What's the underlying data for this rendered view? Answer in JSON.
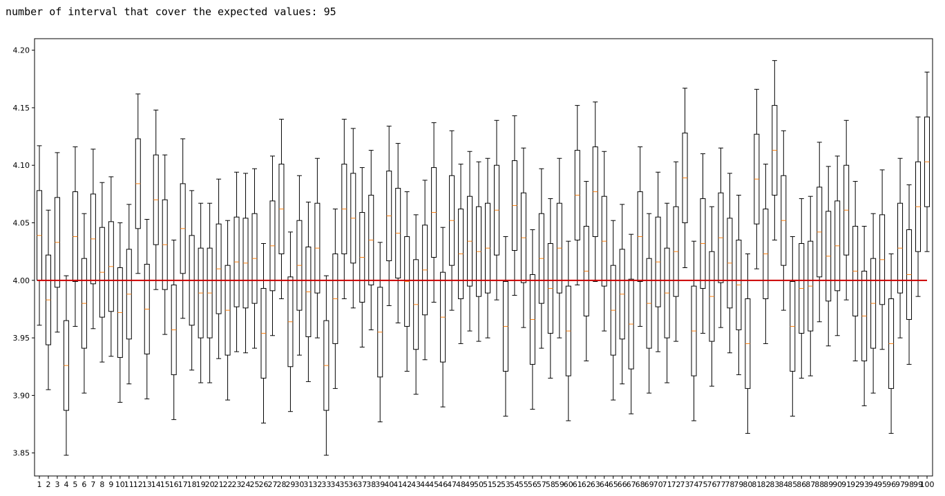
{
  "header": {
    "text": "number of interval that cover the expected values: 95"
  },
  "colors": {
    "box": "#000000",
    "median": "#ff7f0e",
    "reference_line": "#cc0000",
    "axes": "#000000"
  },
  "chart_data": {
    "type": "boxplot",
    "title": "",
    "xlabel": "",
    "ylabel": "",
    "ylim": [
      3.83,
      4.21
    ],
    "yticks": [
      3.85,
      3.9,
      3.95,
      4.0,
      4.05,
      4.1,
      4.15,
      4.2
    ],
    "ytick_labels": [
      "3.85",
      "3.90",
      "3.95",
      "4.00",
      "4.05",
      "4.10",
      "4.15",
      "4.20"
    ],
    "grid": false,
    "reference_line": {
      "y": 4.0
    },
    "categories": [
      "1",
      "2",
      "3",
      "4",
      "5",
      "6",
      "7",
      "8",
      "9",
      "10",
      "11",
      "12",
      "13",
      "14",
      "15",
      "16",
      "17",
      "18",
      "19",
      "20",
      "21",
      "22",
      "23",
      "24",
      "25",
      "26",
      "27",
      "28",
      "29",
      "30",
      "31",
      "32",
      "33",
      "34",
      "35",
      "36",
      "37",
      "38",
      "39",
      "40",
      "41",
      "42",
      "43",
      "44",
      "45",
      "46",
      "47",
      "48",
      "49",
      "50",
      "51",
      "52",
      "53",
      "54",
      "55",
      "56",
      "57",
      "58",
      "59",
      "60",
      "61",
      "62",
      "63",
      "64",
      "65",
      "66",
      "67",
      "68",
      "69",
      "70",
      "71",
      "72",
      "73",
      "74",
      "75",
      "76",
      "77",
      "78",
      "79",
      "80",
      "81",
      "82",
      "83",
      "84",
      "85",
      "86",
      "87",
      "88",
      "89",
      "90",
      "91",
      "92",
      "93",
      "94",
      "95",
      "96",
      "97",
      "98",
      "99",
      "100"
    ],
    "boxes": [
      {
        "wl": 3.961,
        "q1": 4.0,
        "med": 4.039,
        "q3": 4.078,
        "wh": 4.117
      },
      {
        "wl": 3.905,
        "q1": 3.944,
        "med": 3.983,
        "q3": 4.022,
        "wh": 4.061
      },
      {
        "wl": 3.955,
        "q1": 3.994,
        "med": 4.033,
        "q3": 4.072,
        "wh": 4.111
      },
      {
        "wl": 3.848,
        "q1": 3.887,
        "med": 3.926,
        "q3": 3.965,
        "wh": 4.004
      },
      {
        "wl": 3.96,
        "q1": 3.999,
        "med": 4.038,
        "q3": 4.077,
        "wh": 4.116
      },
      {
        "wl": 3.902,
        "q1": 3.941,
        "med": 3.98,
        "q3": 4.019,
        "wh": 4.058
      },
      {
        "wl": 3.958,
        "q1": 3.997,
        "med": 4.036,
        "q3": 4.075,
        "wh": 4.114
      },
      {
        "wl": 3.929,
        "q1": 3.968,
        "med": 4.007,
        "q3": 4.046,
        "wh": 4.085
      },
      {
        "wl": 3.934,
        "q1": 3.973,
        "med": 4.012,
        "q3": 4.051,
        "wh": 4.09
      },
      {
        "wl": 3.894,
        "q1": 3.933,
        "med": 3.972,
        "q3": 4.011,
        "wh": 4.05
      },
      {
        "wl": 3.91,
        "q1": 3.949,
        "med": 3.988,
        "q3": 4.027,
        "wh": 4.066
      },
      {
        "wl": 4.006,
        "q1": 4.045,
        "med": 4.084,
        "q3": 4.123,
        "wh": 4.162
      },
      {
        "wl": 3.897,
        "q1": 3.936,
        "med": 3.975,
        "q3": 4.014,
        "wh": 4.053
      },
      {
        "wl": 3.992,
        "q1": 4.031,
        "med": 4.07,
        "q3": 4.109,
        "wh": 4.148
      },
      {
        "wl": 3.953,
        "q1": 3.992,
        "med": 4.031,
        "q3": 4.07,
        "wh": 4.109
      },
      {
        "wl": 3.879,
        "q1": 3.918,
        "med": 3.957,
        "q3": 3.996,
        "wh": 4.035
      },
      {
        "wl": 3.967,
        "q1": 4.006,
        "med": 4.045,
        "q3": 4.084,
        "wh": 4.123
      },
      {
        "wl": 3.922,
        "q1": 3.961,
        "med": 4.0,
        "q3": 4.039,
        "wh": 4.078
      },
      {
        "wl": 3.911,
        "q1": 3.95,
        "med": 3.989,
        "q3": 4.028,
        "wh": 4.067
      },
      {
        "wl": 3.911,
        "q1": 3.95,
        "med": 3.989,
        "q3": 4.028,
        "wh": 4.067
      },
      {
        "wl": 3.932,
        "q1": 3.971,
        "med": 4.01,
        "q3": 4.049,
        "wh": 4.088
      },
      {
        "wl": 3.896,
        "q1": 3.935,
        "med": 3.974,
        "q3": 4.013,
        "wh": 4.052
      },
      {
        "wl": 3.938,
        "q1": 3.977,
        "med": 4.016,
        "q3": 4.055,
        "wh": 4.094
      },
      {
        "wl": 3.937,
        "q1": 3.976,
        "med": 4.015,
        "q3": 4.054,
        "wh": 4.093
      },
      {
        "wl": 3.941,
        "q1": 3.98,
        "med": 4.019,
        "q3": 4.058,
        "wh": 4.097
      },
      {
        "wl": 3.876,
        "q1": 3.915,
        "med": 3.954,
        "q3": 3.993,
        "wh": 4.032
      },
      {
        "wl": 3.952,
        "q1": 3.991,
        "med": 4.03,
        "q3": 4.069,
        "wh": 4.108
      },
      {
        "wl": 3.984,
        "q1": 4.023,
        "med": 4.062,
        "q3": 4.101,
        "wh": 4.14
      },
      {
        "wl": 3.886,
        "q1": 3.925,
        "med": 3.964,
        "q3": 4.003,
        "wh": 4.042
      },
      {
        "wl": 3.935,
        "q1": 3.974,
        "med": 4.013,
        "q3": 4.052,
        "wh": 4.091
      },
      {
        "wl": 3.912,
        "q1": 3.951,
        "med": 3.99,
        "q3": 4.029,
        "wh": 4.068
      },
      {
        "wl": 3.95,
        "q1": 3.989,
        "med": 4.028,
        "q3": 4.067,
        "wh": 4.106
      },
      {
        "wl": 3.848,
        "q1": 3.887,
        "med": 3.926,
        "q3": 3.965,
        "wh": 4.004
      },
      {
        "wl": 3.906,
        "q1": 3.945,
        "med": 3.984,
        "q3": 4.023,
        "wh": 4.062
      },
      {
        "wl": 3.984,
        "q1": 4.023,
        "med": 4.062,
        "q3": 4.101,
        "wh": 4.14
      },
      {
        "wl": 3.976,
        "q1": 4.015,
        "med": 4.054,
        "q3": 4.093,
        "wh": 4.132
      },
      {
        "wl": 3.942,
        "q1": 3.981,
        "med": 4.02,
        "q3": 4.059,
        "wh": 4.098
      },
      {
        "wl": 3.957,
        "q1": 3.996,
        "med": 4.035,
        "q3": 4.074,
        "wh": 4.113
      },
      {
        "wl": 3.877,
        "q1": 3.916,
        "med": 3.955,
        "q3": 3.994,
        "wh": 4.033
      },
      {
        "wl": 3.978,
        "q1": 4.017,
        "med": 4.056,
        "q3": 4.095,
        "wh": 4.134
      },
      {
        "wl": 3.963,
        "q1": 4.002,
        "med": 4.041,
        "q3": 4.08,
        "wh": 4.119
      },
      {
        "wl": 3.921,
        "q1": 3.96,
        "med": 3.999,
        "q3": 4.038,
        "wh": 4.077
      },
      {
        "wl": 3.901,
        "q1": 3.94,
        "med": 3.979,
        "q3": 4.018,
        "wh": 4.057
      },
      {
        "wl": 3.931,
        "q1": 3.97,
        "med": 4.009,
        "q3": 4.048,
        "wh": 4.087
      },
      {
        "wl": 3.981,
        "q1": 4.02,
        "med": 4.059,
        "q3": 4.098,
        "wh": 4.137
      },
      {
        "wl": 3.89,
        "q1": 3.929,
        "med": 3.968,
        "q3": 4.007,
        "wh": 4.046
      },
      {
        "wl": 3.974,
        "q1": 4.013,
        "med": 4.052,
        "q3": 4.091,
        "wh": 4.13
      },
      {
        "wl": 3.945,
        "q1": 3.984,
        "med": 4.023,
        "q3": 4.062,
        "wh": 4.101
      },
      {
        "wl": 3.956,
        "q1": 3.995,
        "med": 4.034,
        "q3": 4.073,
        "wh": 4.112
      },
      {
        "wl": 3.947,
        "q1": 3.986,
        "med": 4.025,
        "q3": 4.064,
        "wh": 4.103
      },
      {
        "wl": 3.95,
        "q1": 3.989,
        "med": 4.028,
        "q3": 4.067,
        "wh": 4.106
      },
      {
        "wl": 3.983,
        "q1": 4.022,
        "med": 4.061,
        "q3": 4.1,
        "wh": 4.139
      },
      {
        "wl": 3.882,
        "q1": 3.921,
        "med": 3.96,
        "q3": 3.999,
        "wh": 4.038
      },
      {
        "wl": 3.987,
        "q1": 4.026,
        "med": 4.065,
        "q3": 4.104,
        "wh": 4.143
      },
      {
        "wl": 3.959,
        "q1": 3.998,
        "med": 4.037,
        "q3": 4.076,
        "wh": 4.115
      },
      {
        "wl": 3.888,
        "q1": 3.927,
        "med": 3.966,
        "q3": 4.005,
        "wh": 4.044
      },
      {
        "wl": 3.941,
        "q1": 3.98,
        "med": 4.019,
        "q3": 4.058,
        "wh": 4.097
      },
      {
        "wl": 3.915,
        "q1": 3.954,
        "med": 3.993,
        "q3": 4.032,
        "wh": 4.071
      },
      {
        "wl": 3.95,
        "q1": 3.989,
        "med": 4.028,
        "q3": 4.067,
        "wh": 4.106
      },
      {
        "wl": 3.878,
        "q1": 3.917,
        "med": 3.956,
        "q3": 3.995,
        "wh": 4.034
      },
      {
        "wl": 3.996,
        "q1": 4.035,
        "med": 4.074,
        "q3": 4.113,
        "wh": 4.152
      },
      {
        "wl": 3.93,
        "q1": 3.969,
        "med": 4.008,
        "q3": 4.047,
        "wh": 4.086
      },
      {
        "wl": 3.999,
        "q1": 4.038,
        "med": 4.077,
        "q3": 4.116,
        "wh": 4.155
      },
      {
        "wl": 3.956,
        "q1": 3.995,
        "med": 4.034,
        "q3": 4.073,
        "wh": 4.112
      },
      {
        "wl": 3.896,
        "q1": 3.935,
        "med": 3.974,
        "q3": 4.013,
        "wh": 4.052
      },
      {
        "wl": 3.91,
        "q1": 3.949,
        "med": 3.988,
        "q3": 4.027,
        "wh": 4.066
      },
      {
        "wl": 3.884,
        "q1": 3.923,
        "med": 3.962,
        "q3": 4.001,
        "wh": 4.04
      },
      {
        "wl": 3.96,
        "q1": 3.999,
        "med": 4.038,
        "q3": 4.077,
        "wh": 4.116
      },
      {
        "wl": 3.902,
        "q1": 3.941,
        "med": 3.98,
        "q3": 4.019,
        "wh": 4.058
      },
      {
        "wl": 3.938,
        "q1": 3.977,
        "med": 4.016,
        "q3": 4.055,
        "wh": 4.094
      },
      {
        "wl": 3.911,
        "q1": 3.95,
        "med": 3.989,
        "q3": 4.028,
        "wh": 4.067
      },
      {
        "wl": 3.947,
        "q1": 3.986,
        "med": 4.025,
        "q3": 4.064,
        "wh": 4.103
      },
      {
        "wl": 4.011,
        "q1": 4.05,
        "med": 4.089,
        "q3": 4.128,
        "wh": 4.167
      },
      {
        "wl": 3.878,
        "q1": 3.917,
        "med": 3.956,
        "q3": 3.995,
        "wh": 4.034
      },
      {
        "wl": 3.954,
        "q1": 3.993,
        "med": 4.032,
        "q3": 4.071,
        "wh": 4.11
      },
      {
        "wl": 3.908,
        "q1": 3.947,
        "med": 3.986,
        "q3": 4.025,
        "wh": 4.064
      },
      {
        "wl": 3.959,
        "q1": 3.998,
        "med": 4.037,
        "q3": 4.076,
        "wh": 4.115
      },
      {
        "wl": 3.937,
        "q1": 3.976,
        "med": 4.015,
        "q3": 4.054,
        "wh": 4.093
      },
      {
        "wl": 3.918,
        "q1": 3.957,
        "med": 3.996,
        "q3": 4.035,
        "wh": 4.074
      },
      {
        "wl": 3.867,
        "q1": 3.906,
        "med": 3.945,
        "q3": 3.984,
        "wh": 4.023
      },
      {
        "wl": 4.01,
        "q1": 4.049,
        "med": 4.088,
        "q3": 4.127,
        "wh": 4.166
      },
      {
        "wl": 3.945,
        "q1": 3.984,
        "med": 4.023,
        "q3": 4.062,
        "wh": 4.101
      },
      {
        "wl": 4.035,
        "q1": 4.074,
        "med": 4.113,
        "q3": 4.152,
        "wh": 4.191
      },
      {
        "wl": 3.974,
        "q1": 4.013,
        "med": 4.052,
        "q3": 4.091,
        "wh": 4.13
      },
      {
        "wl": 3.882,
        "q1": 3.921,
        "med": 3.96,
        "q3": 3.999,
        "wh": 4.038
      },
      {
        "wl": 3.915,
        "q1": 3.954,
        "med": 3.993,
        "q3": 4.032,
        "wh": 4.071
      },
      {
        "wl": 3.917,
        "q1": 3.956,
        "med": 3.995,
        "q3": 4.034,
        "wh": 4.073
      },
      {
        "wl": 3.964,
        "q1": 4.003,
        "med": 4.042,
        "q3": 4.081,
        "wh": 4.12
      },
      {
        "wl": 3.943,
        "q1": 3.982,
        "med": 4.021,
        "q3": 4.06,
        "wh": 4.099
      },
      {
        "wl": 3.952,
        "q1": 3.991,
        "med": 4.03,
        "q3": 4.069,
        "wh": 4.108
      },
      {
        "wl": 3.983,
        "q1": 4.022,
        "med": 4.061,
        "q3": 4.1,
        "wh": 4.139
      },
      {
        "wl": 3.93,
        "q1": 3.969,
        "med": 4.008,
        "q3": 4.047,
        "wh": 4.086
      },
      {
        "wl": 3.891,
        "q1": 3.93,
        "med": 3.969,
        "q3": 4.008,
        "wh": 4.047
      },
      {
        "wl": 3.902,
        "q1": 3.941,
        "med": 3.98,
        "q3": 4.019,
        "wh": 4.058
      },
      {
        "wl": 3.94,
        "q1": 3.979,
        "med": 4.018,
        "q3": 4.057,
        "wh": 4.096
      },
      {
        "wl": 3.867,
        "q1": 3.906,
        "med": 3.945,
        "q3": 3.984,
        "wh": 4.023
      },
      {
        "wl": 3.95,
        "q1": 3.989,
        "med": 4.028,
        "q3": 4.067,
        "wh": 4.106
      },
      {
        "wl": 3.927,
        "q1": 3.966,
        "med": 4.005,
        "q3": 4.044,
        "wh": 4.083
      },
      {
        "wl": 3.986,
        "q1": 4.025,
        "med": 4.064,
        "q3": 4.103,
        "wh": 4.142
      },
      {
        "wl": 4.025,
        "q1": 4.064,
        "med": 4.103,
        "q3": 4.142,
        "wh": 4.181
      }
    ]
  }
}
